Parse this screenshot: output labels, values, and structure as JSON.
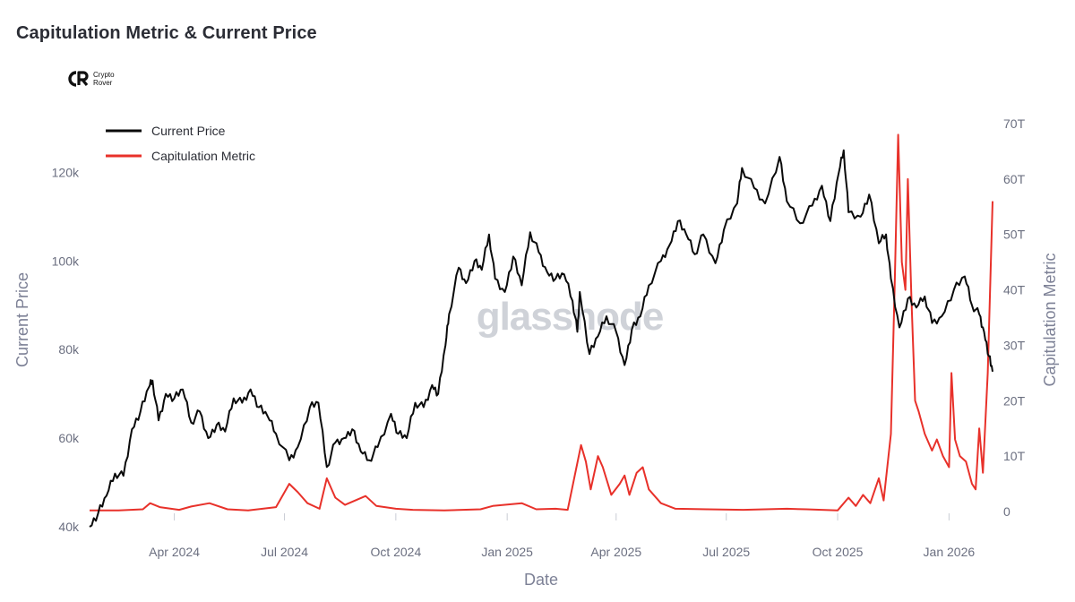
{
  "header": {
    "title": "Capitulation Metric & Current Price"
  },
  "logo": {
    "line1": "Crypto",
    "line2": "Rover"
  },
  "watermark": "glassnode",
  "colors": {
    "price": "#0a0a0a",
    "capitulation": "#e8312a",
    "axis_text": "#6b6f80"
  },
  "chart_data": {
    "type": "line",
    "title": "Capitulation Metric & Current Price",
    "xlabel": "Date",
    "ylabel_left": "Current Price",
    "ylabel_right": "Capitulation Metric",
    "x_range": [
      "2024-01-22",
      "2026-02-06"
    ],
    "x_ticks": [
      {
        "date": "2024-04-01",
        "label": "Apr 2024"
      },
      {
        "date": "2024-07-01",
        "label": "Jul 2024"
      },
      {
        "date": "2024-10-01",
        "label": "Oct 2024"
      },
      {
        "date": "2025-01-01",
        "label": "Jan 2025"
      },
      {
        "date": "2025-04-01",
        "label": "Apr 2025"
      },
      {
        "date": "2025-07-01",
        "label": "Jul 2025"
      },
      {
        "date": "2025-10-01",
        "label": "Oct 2025"
      },
      {
        "date": "2026-01-01",
        "label": "Jan 2026"
      }
    ],
    "y_left": {
      "ylim": [
        40000,
        130000
      ],
      "ticks": [
        40000,
        60000,
        80000,
        100000,
        120000
      ],
      "tick_labels": [
        "40k",
        "60k",
        "80k",
        "100k",
        "120k"
      ]
    },
    "y_right": {
      "ylim": [
        0,
        70000000000000
      ],
      "ticks": [
        0,
        10000000000000,
        20000000000000,
        30000000000000,
        40000000000000,
        50000000000000,
        60000000000000,
        70000000000000
      ],
      "tick_labels": [
        "0",
        "10T",
        "20T",
        "30T",
        "40T",
        "50T",
        "60T",
        "70T"
      ]
    },
    "legend_position": "top-left",
    "grid": false,
    "series": [
      {
        "name": "Current Price",
        "axis": "left",
        "points": [
          [
            "2024-01-22",
            40000
          ],
          [
            "2024-01-29",
            43000
          ],
          [
            "2024-02-05",
            47000
          ],
          [
            "2024-02-12",
            52000
          ],
          [
            "2024-02-19",
            51500
          ],
          [
            "2024-02-26",
            62000
          ],
          [
            "2024-03-04",
            66000
          ],
          [
            "2024-03-11",
            71500
          ],
          [
            "2024-03-14",
            73000
          ],
          [
            "2024-03-19",
            64000
          ],
          [
            "2024-03-25",
            70000
          ],
          [
            "2024-04-01",
            69000
          ],
          [
            "2024-04-08",
            71000
          ],
          [
            "2024-04-15",
            63500
          ],
          [
            "2024-04-22",
            66000
          ],
          [
            "2024-04-29",
            60000
          ],
          [
            "2024-05-06",
            63000
          ],
          [
            "2024-05-13",
            61500
          ],
          [
            "2024-05-20",
            69000
          ],
          [
            "2024-05-27",
            68000
          ],
          [
            "2024-06-03",
            71000
          ],
          [
            "2024-06-10",
            67000
          ],
          [
            "2024-06-17",
            65000
          ],
          [
            "2024-06-24",
            61000
          ],
          [
            "2024-07-05",
            55000
          ],
          [
            "2024-07-12",
            58000
          ],
          [
            "2024-07-22",
            67000
          ],
          [
            "2024-07-29",
            68000
          ],
          [
            "2024-08-05",
            53500
          ],
          [
            "2024-08-12",
            59000
          ],
          [
            "2024-08-19",
            60000
          ],
          [
            "2024-08-26",
            62000
          ],
          [
            "2024-09-02",
            57000
          ],
          [
            "2024-09-09",
            55000
          ],
          [
            "2024-09-16",
            58000
          ],
          [
            "2024-09-27",
            65500
          ],
          [
            "2024-10-03",
            61000
          ],
          [
            "2024-10-10",
            60000
          ],
          [
            "2024-10-17",
            68000
          ],
          [
            "2024-10-24",
            67000
          ],
          [
            "2024-10-31",
            72000
          ],
          [
            "2024-11-05",
            70000
          ],
          [
            "2024-11-11",
            81000
          ],
          [
            "2024-11-14",
            88000
          ],
          [
            "2024-11-22",
            98500
          ],
          [
            "2024-11-28",
            95000
          ],
          [
            "2024-12-05",
            100000
          ],
          [
            "2024-12-11",
            98000
          ],
          [
            "2024-12-17",
            106000
          ],
          [
            "2024-12-22",
            96000
          ],
          [
            "2024-12-30",
            93000
          ],
          [
            "2025-01-06",
            101000
          ],
          [
            "2025-01-13",
            94500
          ],
          [
            "2025-01-20",
            106500
          ],
          [
            "2025-01-27",
            102000
          ],
          [
            "2025-02-03",
            97500
          ],
          [
            "2025-02-10",
            96000
          ],
          [
            "2025-02-17",
            97000
          ],
          [
            "2025-02-24",
            91000
          ],
          [
            "2025-02-28",
            84000
          ],
          [
            "2025-03-02",
            93000
          ],
          [
            "2025-03-10",
            79000
          ],
          [
            "2025-03-17",
            83000
          ],
          [
            "2025-03-24",
            87500
          ],
          [
            "2025-04-01",
            84000
          ],
          [
            "2025-04-08",
            76500
          ],
          [
            "2025-04-14",
            84500
          ],
          [
            "2025-04-21",
            87500
          ],
          [
            "2025-04-28",
            94500
          ],
          [
            "2025-05-08",
            100000
          ],
          [
            "2025-05-15",
            103500
          ],
          [
            "2025-05-22",
            109000
          ],
          [
            "2025-05-29",
            106000
          ],
          [
            "2025-06-05",
            101500
          ],
          [
            "2025-06-12",
            106000
          ],
          [
            "2025-06-22",
            99500
          ],
          [
            "2025-06-29",
            107000
          ],
          [
            "2025-07-10",
            113000
          ],
          [
            "2025-07-14",
            121000
          ],
          [
            "2025-07-24",
            116500
          ],
          [
            "2025-08-02",
            113000
          ],
          [
            "2025-08-14",
            123500
          ],
          [
            "2025-08-20",
            113500
          ],
          [
            "2025-08-31",
            108500
          ],
          [
            "2025-09-10",
            112500
          ],
          [
            "2025-09-18",
            117000
          ],
          [
            "2025-09-25",
            109000
          ],
          [
            "2025-10-02",
            120000
          ],
          [
            "2025-10-06",
            125000
          ],
          [
            "2025-10-10",
            111000
          ],
          [
            "2025-10-20",
            110000
          ],
          [
            "2025-10-27",
            115000
          ],
          [
            "2025-11-04",
            104000
          ],
          [
            "2025-11-10",
            106000
          ],
          [
            "2025-11-14",
            96000
          ],
          [
            "2025-11-21",
            85000
          ],
          [
            "2025-11-28",
            91500
          ],
          [
            "2025-12-05",
            89500
          ],
          [
            "2025-12-12",
            92000
          ],
          [
            "2025-12-18",
            86000
          ],
          [
            "2025-12-26",
            87500
          ],
          [
            "2026-01-05",
            93500
          ],
          [
            "2026-01-14",
            96500
          ],
          [
            "2026-01-20",
            90000
          ],
          [
            "2026-01-26",
            88000
          ],
          [
            "2026-01-30",
            84000
          ],
          [
            "2026-02-03",
            78500
          ],
          [
            "2026-02-06",
            75000
          ]
        ]
      },
      {
        "name": "Capitulation Metric",
        "axis": "right",
        "points": [
          [
            "2024-01-22",
            0.2
          ],
          [
            "2024-02-15",
            0.2
          ],
          [
            "2024-03-06",
            0.4
          ],
          [
            "2024-03-12",
            1.5
          ],
          [
            "2024-03-20",
            0.8
          ],
          [
            "2024-04-05",
            0.3
          ],
          [
            "2024-04-15",
            0.9
          ],
          [
            "2024-04-30",
            1.5
          ],
          [
            "2024-05-15",
            0.4
          ],
          [
            "2024-06-01",
            0.2
          ],
          [
            "2024-06-24",
            0.8
          ],
          [
            "2024-07-05",
            5
          ],
          [
            "2024-07-12",
            3.5
          ],
          [
            "2024-07-20",
            1.5
          ],
          [
            "2024-07-30",
            0.5
          ],
          [
            "2024-08-05",
            6
          ],
          [
            "2024-08-12",
            2.5
          ],
          [
            "2024-08-20",
            1.2
          ],
          [
            "2024-09-06",
            2.8
          ],
          [
            "2024-09-15",
            1.0
          ],
          [
            "2024-10-01",
            0.5
          ],
          [
            "2024-10-15",
            0.3
          ],
          [
            "2024-11-10",
            0.2
          ],
          [
            "2024-12-10",
            0.4
          ],
          [
            "2024-12-20",
            1.0
          ],
          [
            "2025-01-13",
            1.5
          ],
          [
            "2025-01-25",
            0.4
          ],
          [
            "2025-02-10",
            0.5
          ],
          [
            "2025-02-20",
            0.3
          ],
          [
            "2025-03-03",
            12
          ],
          [
            "2025-03-07",
            9
          ],
          [
            "2025-03-11",
            4
          ],
          [
            "2025-03-17",
            10
          ],
          [
            "2025-03-21",
            8
          ],
          [
            "2025-03-28",
            3
          ],
          [
            "2025-04-04",
            5
          ],
          [
            "2025-04-08",
            6.5
          ],
          [
            "2025-04-12",
            3
          ],
          [
            "2025-04-18",
            7
          ],
          [
            "2025-04-23",
            8
          ],
          [
            "2025-04-28",
            4
          ],
          [
            "2025-05-08",
            1.5
          ],
          [
            "2025-05-20",
            0.5
          ],
          [
            "2025-06-15",
            0.4
          ],
          [
            "2025-07-15",
            0.3
          ],
          [
            "2025-08-20",
            0.5
          ],
          [
            "2025-09-05",
            0.4
          ],
          [
            "2025-10-01",
            0.2
          ],
          [
            "2025-10-10",
            2.5
          ],
          [
            "2025-10-16",
            1.0
          ],
          [
            "2025-10-22",
            3
          ],
          [
            "2025-10-28",
            1.5
          ],
          [
            "2025-11-04",
            6
          ],
          [
            "2025-11-08",
            2
          ],
          [
            "2025-11-14",
            14
          ],
          [
            "2025-11-17",
            40
          ],
          [
            "2025-11-20",
            68
          ],
          [
            "2025-11-23",
            45
          ],
          [
            "2025-11-26",
            40
          ],
          [
            "2025-11-28",
            60
          ],
          [
            "2025-12-01",
            38
          ],
          [
            "2025-12-04",
            20
          ],
          [
            "2025-12-07",
            18
          ],
          [
            "2025-12-12",
            14
          ],
          [
            "2025-12-18",
            11
          ],
          [
            "2025-12-22",
            13
          ],
          [
            "2025-12-27",
            10
          ],
          [
            "2026-01-01",
            8
          ],
          [
            "2026-01-03",
            25
          ],
          [
            "2026-01-06",
            13
          ],
          [
            "2026-01-10",
            10
          ],
          [
            "2026-01-15",
            9
          ],
          [
            "2026-01-20",
            5
          ],
          [
            "2026-01-23",
            4
          ],
          [
            "2026-01-26",
            15
          ],
          [
            "2026-01-29",
            7
          ],
          [
            "2026-02-02",
            25
          ],
          [
            "2026-02-06",
            56
          ]
        ]
      }
    ]
  }
}
